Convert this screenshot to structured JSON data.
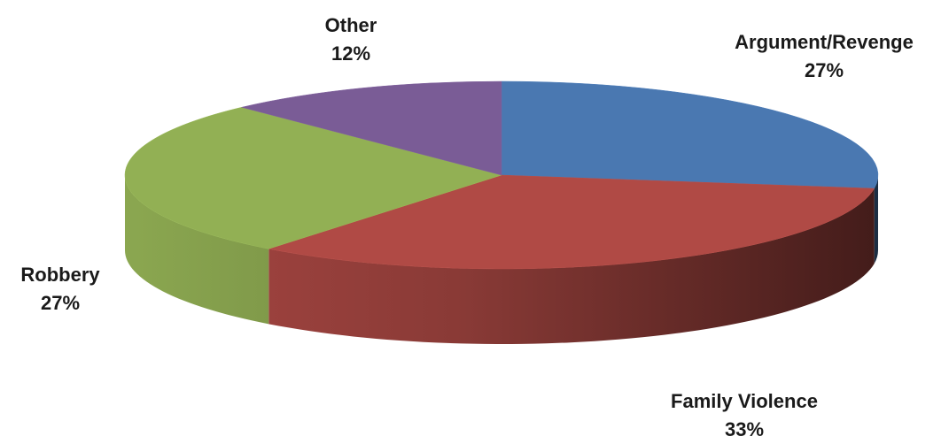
{
  "chart_data": {
    "type": "pie",
    "style": "3d",
    "title": "",
    "slices": [
      {
        "label": "Argument/Revenge",
        "value": 27,
        "percent_label": "27%",
        "color": "#4a78b1"
      },
      {
        "label": "Family Violence",
        "value": 33,
        "percent_label": "33%",
        "color": "#b04a45"
      },
      {
        "label": "Robbery",
        "value": 27,
        "percent_label": "27%",
        "color": "#92b054"
      },
      {
        "label": "Other",
        "value": 12,
        "percent_label": "12%",
        "color": "#7a5c96"
      }
    ]
  }
}
